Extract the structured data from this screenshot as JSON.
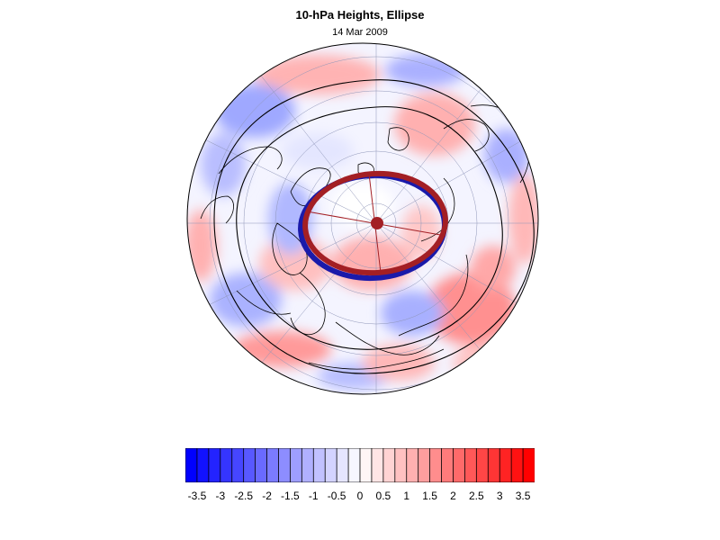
{
  "title": "10-hPa Heights, Ellipse",
  "subtitle": "14 Mar 2009",
  "colorbar": {
    "tick_labels": [
      "-3.5",
      "-3",
      "-2.5",
      "-2",
      "-1.5",
      "-1",
      "-0.5",
      "0",
      "0.5",
      "1",
      "1.5",
      "2",
      "2.5",
      "3",
      "3.5"
    ],
    "levels": [
      -3.75,
      -3.5,
      -3.25,
      -3,
      -2.75,
      -2.5,
      -2.25,
      -2,
      -1.75,
      -1.5,
      -1.25,
      -1,
      -0.75,
      -0.5,
      -0.25,
      0,
      0.25,
      0.5,
      0.75,
      1,
      1.25,
      1.5,
      1.75,
      2,
      2.25,
      2.5,
      2.75,
      3,
      3.25,
      3.5,
      3.75
    ],
    "negative_color": "#0000ff",
    "positive_color": "#ff0000",
    "neutral_color": "#ffffff"
  },
  "map": {
    "projection": "north polar stereographic",
    "ellipse_colors": {
      "analysis": "#a31f24",
      "reference": "#1a1aaa"
    },
    "center_marker_color": "#a31f24"
  }
}
